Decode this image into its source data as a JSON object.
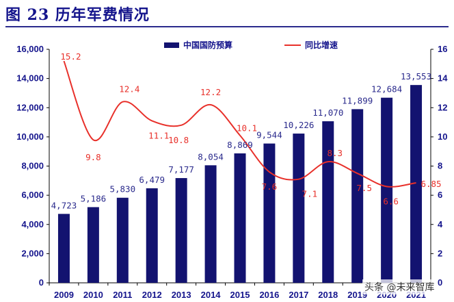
{
  "title": "图 23 历年军费情况",
  "watermark": "头条 @未来智库",
  "colors": {
    "bar": "#131370",
    "line": "#e8302a",
    "text": "#14148c"
  },
  "chart_data": {
    "type": "bar",
    "title": "图 23 历年军费情况",
    "categories": [
      "2009",
      "2010",
      "2011",
      "2012",
      "2013",
      "2014",
      "2015",
      "2016",
      "2017",
      "2018",
      "2019",
      "2020",
      "2021"
    ],
    "series": [
      {
        "name": "中国国防预算",
        "type": "bar",
        "axis": "left",
        "values": [
          4723,
          5186,
          5830,
          6479,
          7177,
          8054,
          8869,
          9544,
          10226,
          11070,
          11899,
          12684,
          13553
        ],
        "labels": [
          "4,723",
          "5,186",
          "5,830",
          "6,479",
          "7,177",
          "8,054",
          "8,869",
          "9,544",
          "10,226",
          "11,070",
          "11,899",
          "12,684",
          "13,553"
        ]
      },
      {
        "name": "同比增速",
        "type": "line",
        "axis": "right",
        "values": [
          15.2,
          9.8,
          12.4,
          11.1,
          10.8,
          12.2,
          10.1,
          7.6,
          7.1,
          8.3,
          7.5,
          6.6,
          6.85
        ],
        "labels": [
          "15.2",
          "9.8",
          "12.4",
          "11.1",
          "10.8",
          "12.2",
          "10.1",
          "7.6",
          "7.1",
          "8.3",
          "7.5",
          "6.6",
          "6.85"
        ]
      }
    ],
    "y_left": {
      "min": 0,
      "max": 16000,
      "ticks": [
        "0",
        "2,000",
        "4,000",
        "6,000",
        "8,000",
        "10,000",
        "12,000",
        "14,000",
        "16,000"
      ]
    },
    "y_right": {
      "min": 0,
      "max": 16,
      "ticks": [
        "0",
        "2",
        "4",
        "6",
        "8",
        "10",
        "12",
        "14",
        "16"
      ]
    },
    "legend_position": "top-right",
    "grid": false
  }
}
